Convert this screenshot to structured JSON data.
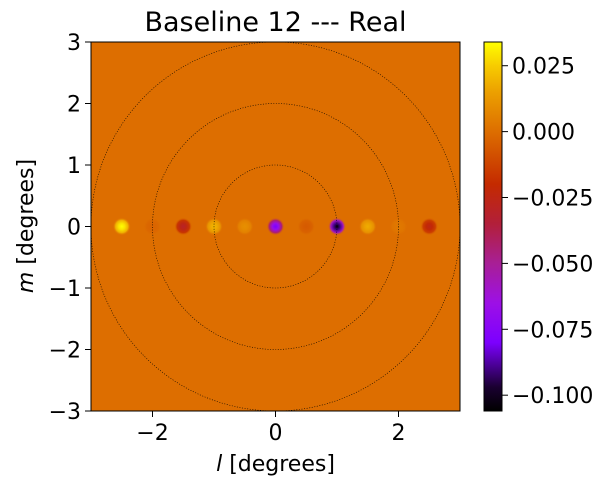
{
  "chart_data": {
    "type": "heatmap",
    "title": "Baseline 12 --- Real",
    "xlabel": {
      "var": "l",
      "unit": " [degrees]"
    },
    "ylabel": {
      "var": "m",
      "unit": " [degrees]"
    },
    "xlim": [
      -3,
      3
    ],
    "ylim": [
      -3,
      3
    ],
    "xticks": [
      {
        "value": -2,
        "label": "−2"
      },
      {
        "value": 0,
        "label": "0"
      },
      {
        "value": 2,
        "label": "2"
      }
    ],
    "yticks": [
      {
        "value": 3,
        "label": "3"
      },
      {
        "value": 2,
        "label": "2"
      },
      {
        "value": 1,
        "label": "1"
      },
      {
        "value": 0,
        "label": "0"
      },
      {
        "value": -1,
        "label": "−1"
      },
      {
        "value": -2,
        "label": "−2"
      },
      {
        "value": -3,
        "label": "−3"
      }
    ],
    "background_value": 0.0,
    "colormap": "gnuplot",
    "colorbar": {
      "vmin": -0.106,
      "vmax": 0.034,
      "ticks": [
        {
          "value": 0.025,
          "label": "0.025"
        },
        {
          "value": 0.0,
          "label": "0.000"
        },
        {
          "value": -0.025,
          "label": "−0.025"
        },
        {
          "value": -0.05,
          "label": "−0.050"
        },
        {
          "value": -0.075,
          "label": "−0.075"
        },
        {
          "value": -0.1,
          "label": "−0.100"
        }
      ],
      "stops": [
        {
          "value": -0.106,
          "color": "#000000"
        },
        {
          "value": -0.097,
          "color": "#1a0030"
        },
        {
          "value": -0.08,
          "color": "#7c00ff"
        },
        {
          "value": -0.065,
          "color": "#9d10e6"
        },
        {
          "value": -0.05,
          "color": "#a81f96"
        },
        {
          "value": -0.035,
          "color": "#b21f3a"
        },
        {
          "value": -0.02,
          "color": "#c42a00"
        },
        {
          "value": 0.0,
          "color": "#dd6e00"
        },
        {
          "value": 0.015,
          "color": "#eca000"
        },
        {
          "value": 0.025,
          "color": "#f7cc00"
        },
        {
          "value": 0.034,
          "color": "#ffff00"
        }
      ]
    },
    "sources": [
      {
        "l": -2.5,
        "m": 0,
        "value": 0.034
      },
      {
        "l": -2.0,
        "m": 0,
        "value": -0.003
      },
      {
        "l": -1.5,
        "m": 0,
        "value": -0.03
      },
      {
        "l": -1.0,
        "m": 0,
        "value": 0.02
      },
      {
        "l": -0.5,
        "m": 0,
        "value": 0.01
      },
      {
        "l": 0.0,
        "m": 0,
        "value": -0.08
      },
      {
        "l": 0.5,
        "m": 0,
        "value": -0.006
      },
      {
        "l": 1.0,
        "m": 0,
        "value": -0.106
      },
      {
        "l": 1.5,
        "m": 0,
        "value": 0.018
      },
      {
        "l": 2.0,
        "m": 0,
        "value": 0.003
      },
      {
        "l": 2.5,
        "m": 0,
        "value": -0.025
      }
    ],
    "circles_radius": [
      1,
      2,
      3
    ],
    "grid": false
  }
}
